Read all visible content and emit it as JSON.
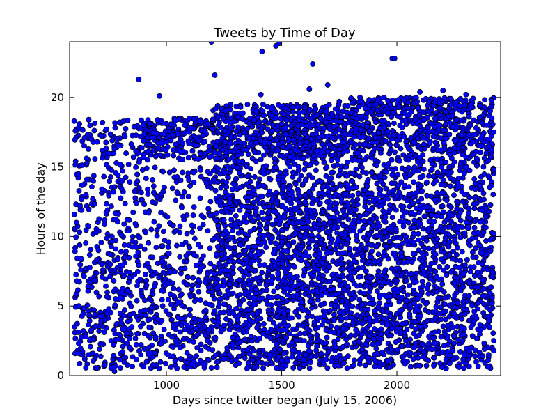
{
  "chart_data": {
    "type": "scatter",
    "title": "Tweets by Time of Day",
    "xlabel": "Days since twitter began (July 15, 2006)",
    "ylabel": "Hours of the day",
    "xlim": [
      580,
      2450
    ],
    "ylim": [
      0,
      24
    ],
    "x_ticks": [
      1000,
      1500,
      2000
    ],
    "y_ticks": [
      0,
      5,
      10,
      15,
      20
    ],
    "x_tick_labels": [
      "1000",
      "1500",
      "2000"
    ],
    "y_tick_labels": [
      "0",
      "5",
      "10",
      "15",
      "20"
    ],
    "grid": false,
    "marker_color": "#0000ff",
    "marker_edge_color": "#000000",
    "x_range_of_data": [
      600,
      2420
    ],
    "series": [
      {
        "points": [
          [
            600,
            18.3
          ],
          [
            605,
            17.6
          ],
          [
            610,
            11.0
          ],
          [
            612,
            6.8
          ],
          [
            618,
            14.5
          ],
          [
            620,
            5.0
          ],
          [
            625,
            12.2
          ],
          [
            630,
            8.4
          ],
          [
            640,
            3.2
          ],
          [
            645,
            17.1
          ],
          [
            650,
            2.8
          ],
          [
            655,
            14.1
          ],
          [
            660,
            6.4
          ],
          [
            670,
            2.6
          ],
          [
            675,
            17.0
          ],
          [
            680,
            12.7
          ],
          [
            690,
            4.4
          ],
          [
            700,
            16.8
          ],
          [
            705,
            9.0
          ],
          [
            710,
            1.9
          ],
          [
            720,
            13.4
          ],
          [
            725,
            7.6
          ],
          [
            730,
            3.1
          ],
          [
            740,
            17.7
          ],
          [
            745,
            11.9
          ],
          [
            750,
            4.8
          ],
          [
            760,
            2.5
          ],
          [
            765,
            16.9
          ],
          [
            770,
            0.6
          ],
          [
            775,
            0.3
          ],
          [
            780,
            9.1
          ],
          [
            790,
            14.4
          ],
          [
            800,
            5.6
          ],
          [
            810,
            1.7
          ],
          [
            820,
            17.2
          ],
          [
            830,
            11.2
          ],
          [
            840,
            7.4
          ],
          [
            850,
            3.5
          ],
          [
            860,
            17.9
          ],
          [
            870,
            12.4
          ],
          [
            880,
            21.3
          ],
          [
            885,
            6.9
          ],
          [
            890,
            2.2
          ],
          [
            900,
            18.0
          ],
          [
            910,
            10.3
          ],
          [
            920,
            4.0
          ],
          [
            930,
            16.6
          ],
          [
            940,
            8.5
          ],
          [
            950,
            1.6
          ],
          [
            960,
            17.4
          ],
          [
            970,
            20.1
          ],
          [
            975,
            13.0
          ],
          [
            980,
            6.1
          ],
          [
            990,
            3.3
          ],
          [
            1000,
            16.8
          ],
          [
            1010,
            9.6
          ],
          [
            1020,
            0.6
          ],
          [
            1030,
            17.3
          ],
          [
            1040,
            12.6
          ],
          [
            1050,
            5.3
          ],
          [
            1060,
            2.0
          ],
          [
            1070,
            16.7
          ],
          [
            1080,
            7.7
          ],
          [
            1090,
            0.9
          ],
          [
            1100,
            17.5
          ],
          [
            1110,
            10.8
          ],
          [
            1120,
            4.1
          ],
          [
            1130,
            1.4
          ],
          [
            1140,
            16.9
          ],
          [
            1150,
            14.3
          ],
          [
            1160,
            8.6
          ],
          [
            1170,
            2.9
          ],
          [
            1180,
            18.1
          ],
          [
            1190,
            11.5
          ],
          [
            1195,
            24.0
          ],
          [
            1200,
            6.0
          ],
          [
            1210,
            21.6
          ],
          [
            1215,
            16.5
          ],
          [
            1220,
            3.6
          ],
          [
            1230,
            9.8
          ],
          [
            1240,
            19.2
          ],
          [
            1250,
            1.2
          ],
          [
            1260,
            13.9
          ],
          [
            1270,
            7.2
          ],
          [
            1280,
            17.8
          ],
          [
            1290,
            4.5
          ],
          [
            1300,
            10.9
          ],
          [
            1310,
            18.6
          ],
          [
            1320,
            2.4
          ],
          [
            1330,
            15.4
          ],
          [
            1340,
            6.6
          ],
          [
            1350,
            0.5
          ],
          [
            1360,
            17.0
          ],
          [
            1370,
            12.1
          ],
          [
            1380,
            5.1
          ],
          [
            1390,
            19.0
          ],
          [
            1400,
            8.9
          ],
          [
            1410,
            20.2
          ],
          [
            1415,
            23.3
          ],
          [
            1420,
            3.0
          ],
          [
            1430,
            16.4
          ],
          [
            1440,
            11.0
          ],
          [
            1450,
            1.5
          ],
          [
            1460,
            17.6
          ],
          [
            1470,
            7.9
          ],
          [
            1475,
            23.7
          ],
          [
            1480,
            4.2
          ],
          [
            1490,
            23.9
          ],
          [
            1500,
            13.1
          ],
          [
            1510,
            18.8
          ],
          [
            1520,
            2.7
          ],
          [
            1530,
            9.4
          ],
          [
            1540,
            16.1
          ],
          [
            1550,
            5.7
          ],
          [
            1560,
            0.9
          ],
          [
            1570,
            19.3
          ],
          [
            1580,
            12.9
          ],
          [
            1590,
            6.3
          ],
          [
            1600,
            17.4
          ],
          [
            1610,
            3.4
          ],
          [
            1620,
            20.6
          ],
          [
            1630,
            10.5
          ],
          [
            1635,
            22.4
          ],
          [
            1640,
            15.8
          ],
          [
            1650,
            1.8
          ],
          [
            1660,
            7.0
          ],
          [
            1670,
            18.5
          ],
          [
            1680,
            13.6
          ],
          [
            1690,
            4.6
          ],
          [
            1700,
            20.9
          ],
          [
            1710,
            9.2
          ],
          [
            1720,
            17.1
          ],
          [
            1730,
            2.3
          ],
          [
            1740,
            11.7
          ],
          [
            1750,
            19.7
          ],
          [
            1760,
            6.5
          ],
          [
            1770,
            0.9
          ],
          [
            1780,
            15.0
          ],
          [
            1790,
            18.2
          ],
          [
            1800,
            8.0
          ],
          [
            1810,
            3.8
          ],
          [
            1820,
            16.6
          ],
          [
            1830,
            12.3
          ],
          [
            1840,
            20.0
          ],
          [
            1850,
            1.3
          ],
          [
            1860,
            5.9
          ],
          [
            1870,
            17.9
          ],
          [
            1880,
            10.1
          ],
          [
            1890,
            14.6
          ],
          [
            1900,
            2.6
          ],
          [
            1910,
            19.5
          ],
          [
            1920,
            7.5
          ],
          [
            1930,
            16.0
          ],
          [
            1940,
            0.8
          ],
          [
            1950,
            11.4
          ],
          [
            1960,
            18.9
          ],
          [
            1970,
            4.3
          ],
          [
            1980,
            22.8
          ],
          [
            1985,
            13.3
          ],
          [
            1990,
            22.8
          ],
          [
            2000,
            6.8
          ],
          [
            2010,
            17.2
          ],
          [
            2020,
            2.1
          ],
          [
            2030,
            19.8
          ],
          [
            2040,
            9.7
          ],
          [
            2050,
            15.5
          ],
          [
            2060,
            1.6
          ],
          [
            2070,
            12.8
          ],
          [
            2080,
            18.4
          ],
          [
            2090,
            5.5
          ],
          [
            2100,
            20.4
          ],
          [
            2110,
            8.2
          ],
          [
            2120,
            16.3
          ],
          [
            2130,
            3.9
          ],
          [
            2140,
            11.1
          ],
          [
            2150,
            19.1
          ],
          [
            2160,
            0.7
          ],
          [
            2170,
            14.0
          ],
          [
            2180,
            17.7
          ],
          [
            2190,
            6.2
          ],
          [
            2200,
            20.5
          ],
          [
            2210,
            9.9
          ],
          [
            2220,
            2.8
          ],
          [
            2230,
            15.9
          ],
          [
            2240,
            18.7
          ],
          [
            2250,
            4.9
          ],
          [
            2260,
            12.5
          ],
          [
            2270,
            0.6
          ],
          [
            2280,
            17.3
          ],
          [
            2290,
            7.3
          ],
          [
            2300,
            20.2
          ],
          [
            2310,
            10.6
          ],
          [
            2320,
            2.0
          ],
          [
            2330,
            16.8
          ],
          [
            2340,
            13.8
          ],
          [
            2350,
            5.2
          ],
          [
            2360,
            19.4
          ],
          [
            2370,
            8.8
          ],
          [
            2380,
            1.9
          ],
          [
            2390,
            18.0
          ],
          [
            2400,
            11.8
          ],
          [
            2405,
            4.7
          ],
          [
            2410,
            16.2
          ],
          [
            2415,
            7.1
          ],
          [
            2420,
            2.5
          ],
          [
            2420,
            17.5
          ],
          [
            2420,
            10.2
          ],
          [
            2420,
            14.8
          ]
        ]
      }
    ],
    "density": {
      "comment": "dense background cloud rows; each row is [y_min, y_max, count] per x-band [x_min, x_max]",
      "bands": [
        {
          "x": [
            600,
            900
          ],
          "rows": [
            [
              0.5,
              8.5,
              260
            ],
            [
              8.5,
              15.0,
              140
            ],
            [
              15.0,
              18.5,
              90
            ]
          ]
        },
        {
          "x": [
            900,
            1200
          ],
          "rows": [
            [
              0.5,
              8.5,
              300
            ],
            [
              8.5,
              15.0,
              120
            ],
            [
              15.5,
              18.5,
              200
            ]
          ]
        },
        {
          "x": [
            1200,
            1500
          ],
          "rows": [
            [
              0.5,
              8.5,
              420
            ],
            [
              8.5,
              13.0,
              260
            ],
            [
              13.0,
              16.0,
              120
            ],
            [
              16.0,
              19.5,
              280
            ]
          ]
        },
        {
          "x": [
            1500,
            1800
          ],
          "rows": [
            [
              0.5,
              8.5,
              460
            ],
            [
              8.5,
              13.0,
              300
            ],
            [
              13.0,
              16.0,
              140
            ],
            [
              16.0,
              19.5,
              300
            ]
          ]
        },
        {
          "x": [
            1800,
            2100
          ],
          "rows": [
            [
              0.5,
              8.5,
              440
            ],
            [
              8.5,
              13.0,
              240
            ],
            [
              13.0,
              16.5,
              150
            ],
            [
              16.5,
              20.0,
              280
            ]
          ]
        },
        {
          "x": [
            2100,
            2420
          ],
          "rows": [
            [
              0.5,
              8.5,
              400
            ],
            [
              8.5,
              13.0,
              230
            ],
            [
              13.0,
              16.5,
              160
            ],
            [
              16.5,
              20.0,
              260
            ]
          ]
        }
      ]
    }
  }
}
